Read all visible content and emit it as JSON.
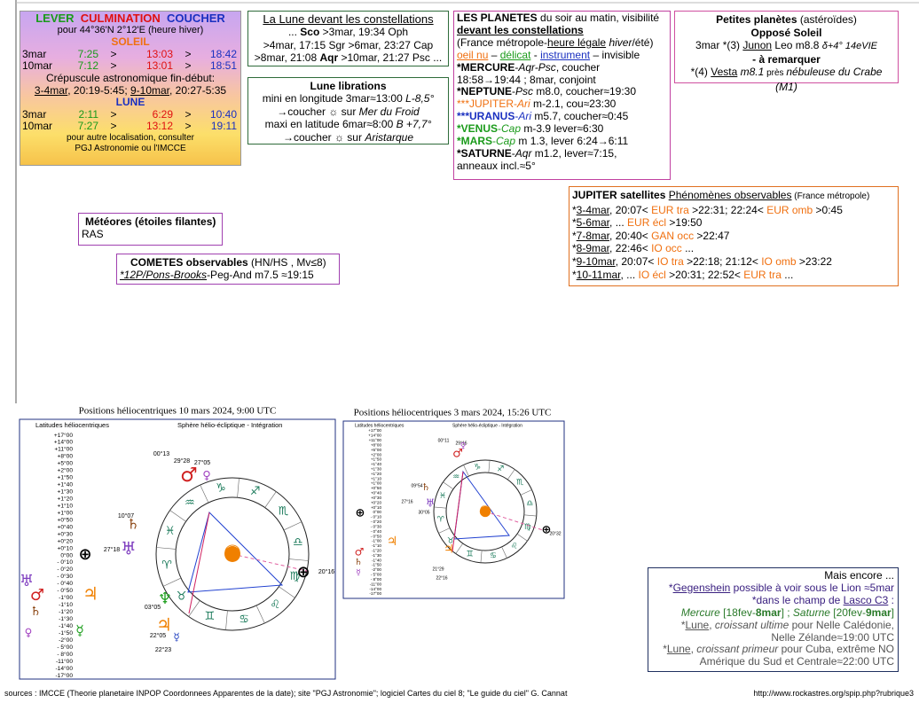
{
  "ephemeris": {
    "header": [
      "LEVER",
      "CULMINATION",
      "COUCHER"
    ],
    "location": "pour 44°36'N  2°12'E (heure hiver)",
    "sun": "SOLEIL",
    "sun_rows": [
      [
        "3mar",
        "7:25",
        ">",
        "13:03",
        ">",
        "18:42"
      ],
      [
        "10mar",
        "7:12",
        ">",
        "13:01",
        ">",
        "18:51"
      ]
    ],
    "twilight": "Crépuscule astronomique fin-début:",
    "twilight_dates": [
      "3-4mar",
      ", 20:19-5:45; ",
      "9-10mar",
      ", 20:27-5:35"
    ],
    "moon": "LUNE",
    "moon_rows": [
      [
        "3mar",
        "2:11",
        ">",
        "6:29",
        ">",
        "10:40"
      ],
      [
        "10mar",
        "7:27",
        ">",
        "13:12",
        ">",
        "19:11"
      ]
    ],
    "note": [
      "pour autre localisation, consulter",
      "PGJ Astronomie ou l'IMCCE"
    ]
  },
  "moon_constellations": {
    "title": "La Lune devant les constellations",
    "lines": [
      [
        "... ",
        "Sco",
        " >3mar, 19:34 Oph"
      ],
      [
        ">4mar, 17:15 Sgr >6mar, 23:27 Cap"
      ],
      [
        ">8mar, 21:08 ",
        "Aqr",
        " >10mar, 21:27 Psc ..."
      ]
    ]
  },
  "librations": {
    "title": "Lune librations",
    "lines": [
      [
        "mini en longitude 3mar≈13:00 ",
        "L-8,5°"
      ],
      [
        "→coucher ☼ sur ",
        "Mer du Froid"
      ],
      [
        "maxi en latitude 6mar≈8:00 ",
        "B +7,7°"
      ],
      [
        "→coucher ☼ sur ",
        "Aristarque"
      ]
    ]
  },
  "planets": {
    "lines": [
      [
        "LES PLANETES",
        " du soir au matin, visibilité"
      ],
      [
        "devant les constellations"
      ],
      [
        "(France métropole-",
        "heure légale",
        " ",
        "hiver",
        "/été)"
      ],
      [
        "oeil nu",
        " – ",
        "délicat",
        " - ",
        "instrument",
        " – invisible"
      ],
      [
        "*MERCURE",
        "-",
        "Aqr-Psc",
        ", coucher"
      ],
      [
        "18:58→19:44 ; 8mar, conjoint"
      ],
      [
        "*NEPTUNE",
        "-",
        "Psc",
        " m8.0, coucher≈19:30"
      ],
      [
        "***JUPITER",
        "-",
        "Ari",
        " m-2.1, cou≈23:30"
      ],
      [
        "***URANUS",
        "-",
        "Ari",
        " m5.7, coucher≈0:45"
      ],
      [
        "*VENUS",
        "-",
        "Cap",
        " m-3.9 lever≈6:30"
      ],
      [
        "*MARS",
        "-",
        "Cap",
        " m 1.3, lever 6:24→6:11"
      ],
      [
        "*SATURNE",
        "-",
        "Aqr",
        " m1.2, lever≈7:15,"
      ],
      [
        "anneaux incl.≈5°"
      ]
    ]
  },
  "asteroids": {
    "lines": [
      [
        "Petites planètes",
        " (astéroïdes)"
      ],
      [
        "Opposé Soleil"
      ],
      [
        "3mar *(3) ",
        "Junon",
        " Leo m8.8  ",
        "δ+4° 14eVIE"
      ],
      [
        "- à remarquer"
      ],
      [
        "*(4) ",
        "Vesta",
        " ",
        "m8.1",
        " près ",
        "nébuleuse du Crabe (M1)"
      ]
    ]
  },
  "jupiter": {
    "lines": [
      [
        "JUPITER satellites",
        "  ",
        "Phénomènes observables",
        " (France métropole)"
      ],
      [
        "*",
        "3-4mar",
        ", 20:07< ",
        "EUR tra",
        " >22:31; 22:24< ",
        "EUR omb",
        " >0:45"
      ],
      [
        "*",
        "5-6mar",
        ", ... ",
        "EUR écl",
        " >19:50"
      ],
      [
        "*",
        "7-8mar",
        ", 20:40< ",
        "GAN occ",
        " >22:47"
      ],
      [
        "*",
        "8-9mar",
        ",  22:46< ",
        "IO occ",
        " ..."
      ],
      [
        "*",
        "9-10mar",
        ", 20:07< ",
        "IO tra",
        " >22:18; 21:12< ",
        "IO omb",
        " >23:22"
      ],
      [
        "*",
        "10-11mar",
        ", ... ",
        "IO écl",
        " >20:31; 22:52< ",
        "EUR tra",
        " ..."
      ]
    ]
  },
  "meteors": {
    "title": "Météores (étoiles filantes)",
    "text": "RAS"
  },
  "comets": {
    "title": [
      "COMETES observables",
      " (HN/HS , Mv≤8)"
    ],
    "line": [
      "*12P/Pons-Brooks",
      "-Peg-And m7.5 ≈19:15"
    ]
  },
  "more": {
    "lines": [
      [
        "Mais encore ..."
      ],
      [
        "*",
        "Gegenshein",
        " possible à voir sous le Lion ≈5mar"
      ],
      [
        "*dans le champ de ",
        "Lasco C3",
        " :"
      ],
      [
        "Mercure",
        " [18fev-",
        "8mar",
        "] ; ",
        "Saturne",
        " [20fev-",
        "9mar",
        "]"
      ],
      [
        "*",
        "Lune",
        ", ",
        "croissant ultime",
        " pour Nelle Calédonie,"
      ],
      [
        "Nelle Zélande≈19:00 UTC"
      ],
      [
        "*",
        "Lune",
        ", ",
        "croissant primeur",
        " pour Cuba, extrême NO"
      ],
      [
        "Amérique du Sud et Centrale≈22:00 UTC"
      ]
    ]
  },
  "helio": [
    {
      "title": "Positions héliocentriques 10 mars 2024, 9:00 UTC",
      "header_left": "Latitudes héliocentriques",
      "header_right": "Sphère hélio-écliptique - Intégration",
      "scale": [
        "+17°00",
        "+14°00",
        "+11°00",
        "+8°00",
        "+5°00",
        "+2°00",
        "+1°50",
        "+1°40",
        "+1°30",
        "+1°20",
        "+1°10",
        "+1°00",
        "+0°50",
        "+0°40",
        "+0°30",
        "+0°20",
        "+0°10",
        "0°00",
        "- 0°10",
        "- 0°20",
        "- 0°30",
        "- 0°40",
        "- 0°50",
        "-1°00",
        "-1°10",
        "-1°20",
        "-1°30",
        "-1°40",
        "-1°50",
        "-2°00",
        "- 5°00",
        "- 8°00",
        "-11°00",
        "-14°00",
        "-17°00"
      ],
      "zodiac": [
        "♈",
        "♉",
        "♊",
        "♋",
        "♌",
        "♍",
        "♎",
        "♏",
        "♐",
        "♑",
        "♒",
        "♓"
      ],
      "angles": [
        "00°13",
        "29°28",
        "27°05",
        "10°07",
        "27°18",
        "20°16",
        "03°05",
        "22°05",
        "22°23"
      ],
      "planets": [
        {
          "symbol": "♂",
          "color": "#d02020"
        },
        {
          "symbol": "♀",
          "color": "#a040c0"
        },
        {
          "symbol": "♄",
          "color": "#8b4513"
        },
        {
          "symbol": "♅",
          "color": "#8040c0"
        },
        {
          "symbol": "⊕",
          "color": "#000000"
        },
        {
          "symbol": "⊕",
          "color": "#000000"
        },
        {
          "symbol": "☉",
          "color": "#f08000"
        },
        {
          "symbol": "♃",
          "color": "#f08000"
        },
        {
          "symbol": "♆",
          "color": "#20a020"
        },
        {
          "symbol": "☿",
          "color": "#2040c0"
        },
        {
          "symbol": "♅",
          "color": "#8040c0"
        },
        {
          "symbol": "♂",
          "color": "#d02020"
        },
        {
          "symbol": "♄",
          "color": "#8b4513"
        },
        {
          "symbol": "♃",
          "color": "#f08000"
        },
        {
          "symbol": "☿",
          "color": "#20a020"
        },
        {
          "symbol": "♀",
          "color": "#a040c0"
        }
      ]
    },
    {
      "title": "Positions héliocentriques 3 mars 2024, 15:26 UTC",
      "header_left": "Latitudes héliocentriques",
      "header_right": "Sphère hélio-écliptique - Intégration",
      "scale": [
        "+17°00",
        "+14°00",
        "+11°00",
        "+8°00",
        "+5°00",
        "+2°00",
        "+1°50",
        "+1°40",
        "+1°30",
        "+1°20",
        "+1°10",
        "+1°00",
        "+0°50",
        "+0°40",
        "+0°30",
        "+0°20",
        "+0°10",
        "0°00",
        "- 0°10",
        "- 0°20",
        "- 0°30",
        "- 0°40",
        "- 0°50",
        "-1°00",
        "-1°10",
        "-1°20",
        "-1°30",
        "-1°40",
        "-1°50",
        "-2°00",
        "- 5°00",
        "- 8°00",
        "-11°00",
        "-14°00",
        "-17°00"
      ],
      "zodiac": [
        "♈",
        "♉",
        "♊",
        "♋",
        "♌",
        "♍",
        "♎",
        "♏",
        "♐",
        "♑",
        "♒",
        "♓"
      ],
      "angles": [
        "00°11",
        "29°16",
        "09°54",
        "27°16",
        "30°05",
        "21°29",
        "22°16",
        "20°32"
      ],
      "planets": [
        {
          "symbol": "♂",
          "color": "#d02020"
        },
        {
          "symbol": "♀",
          "color": "#a040c0"
        },
        {
          "symbol": "♄",
          "color": "#8b4513"
        },
        {
          "symbol": "♅",
          "color": "#8040c0"
        },
        {
          "symbol": "⊕",
          "color": "#000000"
        },
        {
          "symbol": "⊕",
          "color": "#000000"
        },
        {
          "symbol": "☉",
          "color": "#f08000"
        },
        {
          "symbol": "♃",
          "color": "#f08000"
        },
        {
          "symbol": "♃",
          "color": "#f08000"
        },
        {
          "symbol": "♂",
          "color": "#d02020"
        },
        {
          "symbol": "♄",
          "color": "#8b4513"
        },
        {
          "symbol": "☿",
          "color": "#a040c0"
        }
      ]
    }
  ],
  "footer": {
    "sources": "sources : IMCCE (Theorie planetaire INPOP Coordonnees Apparentes de la date); site \"PGJ Astronomie\"; logiciel  Cartes du ciel 8; \"Le guide du ciel\" G. Cannat",
    "url": "http://www.rockastres.org/spip.php?rubrique3"
  }
}
